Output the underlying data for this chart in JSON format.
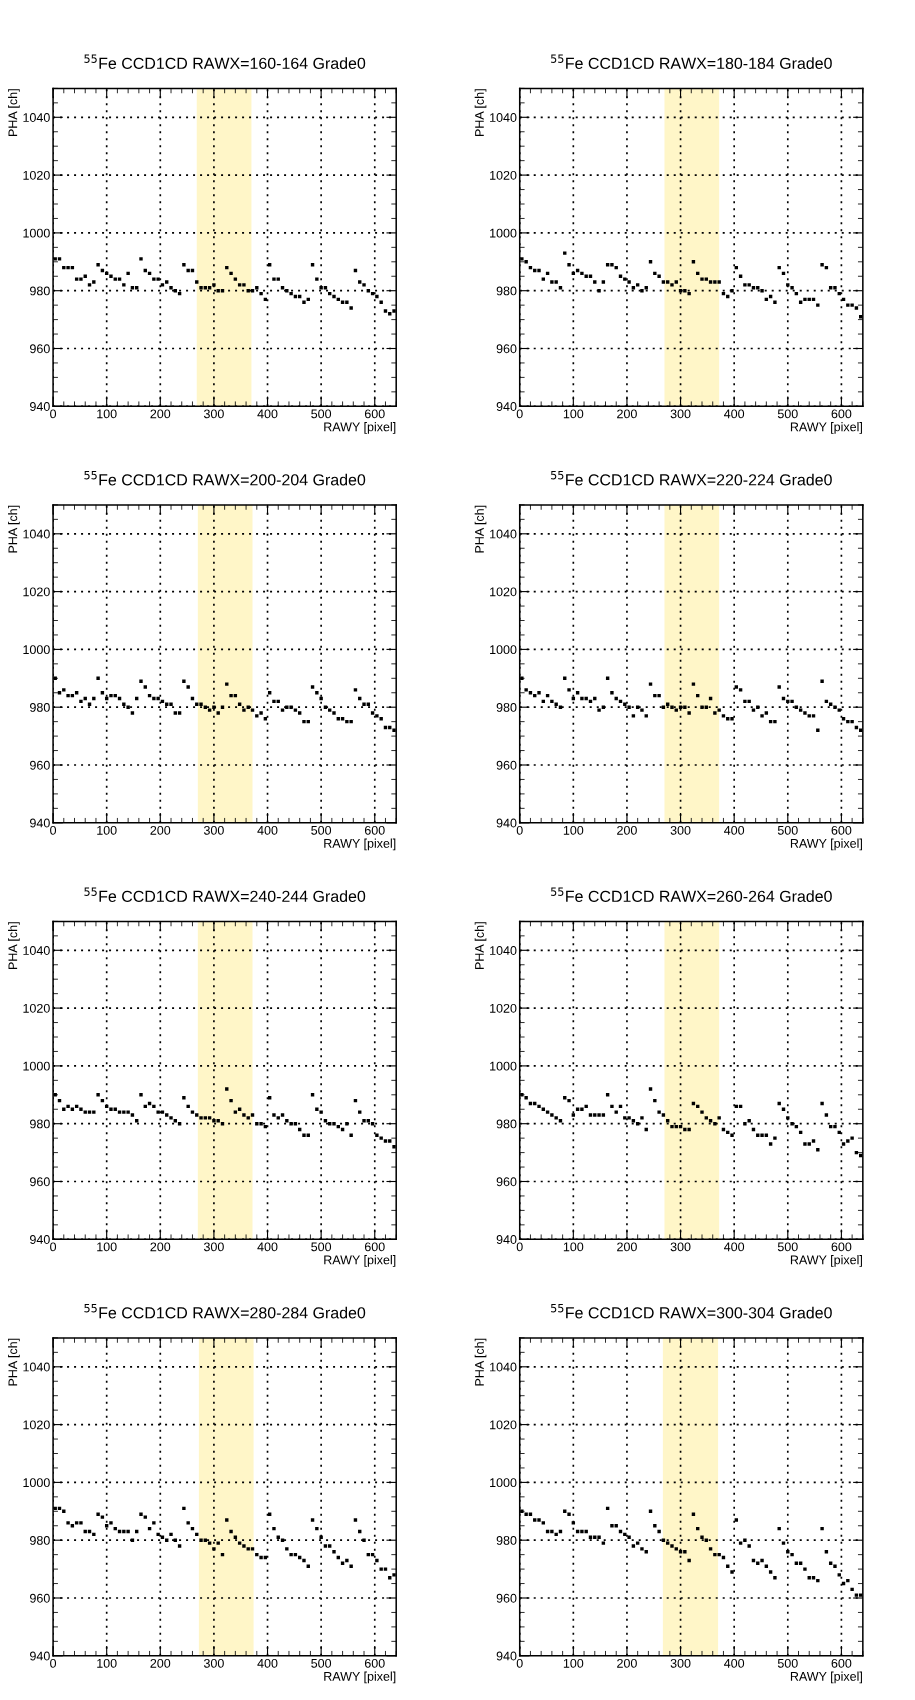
{
  "chart_data": [
    {
      "type": "scatter",
      "title": "$^{55}$Fe CCD1CD RAWX=160-164 Grade0",
      "xlabel": "RAWY [pixel]",
      "ylabel": "PHA [ch]",
      "xlim": [
        0,
        640
      ],
      "ylim": [
        940,
        1050
      ],
      "xticks": [
        0,
        100,
        200,
        300,
        400,
        500,
        600
      ],
      "yticks": [
        940,
        960,
        980,
        1000,
        1020,
        1040
      ],
      "grid": true,
      "marker": "square",
      "color": "#000000",
      "bands": [
        {
          "axis": "x",
          "from": 268,
          "to": 370,
          "color": "#fff6c8"
        }
      ],
      "x": [
        4,
        12,
        20,
        28,
        36,
        44,
        52,
        60,
        68,
        76,
        84,
        92,
        100,
        108,
        116,
        124,
        132,
        140,
        148,
        156,
        164,
        172,
        180,
        188,
        196,
        204,
        212,
        220,
        228,
        236,
        244,
        252,
        260,
        268,
        276,
        284,
        292,
        300,
        308,
        316,
        324,
        332,
        340,
        348,
        356,
        364,
        372,
        380,
        388,
        396,
        404,
        412,
        420,
        428,
        436,
        444,
        452,
        460,
        468,
        476,
        484,
        492,
        500,
        508,
        516,
        524,
        532,
        540,
        548,
        556,
        564,
        572,
        580,
        588,
        596,
        604,
        612,
        620,
        628,
        636
      ],
      "values": [
        991,
        991,
        988,
        988,
        988,
        984,
        984,
        985,
        982,
        983,
        989,
        987,
        986,
        985,
        984,
        984,
        982,
        986,
        981,
        981,
        991,
        987,
        986,
        984,
        984,
        982,
        983,
        981,
        980,
        979,
        989,
        987,
        987,
        983,
        981,
        981,
        981,
        982,
        980,
        980,
        988,
        986,
        984,
        982,
        982,
        980,
        980,
        981,
        979,
        977,
        989,
        984,
        984,
        981,
        980,
        979,
        978,
        978,
        976,
        977,
        989,
        984,
        981,
        981,
        979,
        978,
        977,
        976,
        976,
        974,
        987,
        983,
        982,
        980,
        979,
        978,
        976,
        973,
        972,
        973
      ]
    },
    {
      "type": "scatter",
      "title": "$^{55}$Fe CCD1CD RAWX=180-184 Grade0",
      "xlabel": "RAWY [pixel]",
      "ylabel": "PHA [ch]",
      "xlim": [
        0,
        640
      ],
      "ylim": [
        940,
        1050
      ],
      "xticks": [
        0,
        100,
        200,
        300,
        400,
        500,
        600
      ],
      "yticks": [
        940,
        960,
        980,
        1000,
        1020,
        1040
      ],
      "grid": true,
      "marker": "square",
      "color": "#000000",
      "bands": [
        {
          "axis": "x",
          "from": 270,
          "to": 372,
          "color": "#fff6c8"
        }
      ],
      "x": [
        4,
        12,
        20,
        28,
        36,
        44,
        52,
        60,
        68,
        76,
        84,
        92,
        100,
        108,
        116,
        124,
        132,
        140,
        148,
        156,
        164,
        172,
        180,
        188,
        196,
        204,
        212,
        220,
        228,
        236,
        244,
        252,
        260,
        268,
        276,
        284,
        292,
        300,
        308,
        316,
        324,
        332,
        340,
        348,
        356,
        364,
        372,
        380,
        388,
        396,
        404,
        412,
        420,
        428,
        436,
        444,
        452,
        460,
        468,
        476,
        484,
        492,
        500,
        508,
        516,
        524,
        532,
        540,
        548,
        556,
        564,
        572,
        580,
        588,
        596,
        604,
        612,
        620,
        628,
        636
      ],
      "values": [
        991,
        990,
        988,
        987,
        987,
        984,
        986,
        983,
        983,
        981,
        993,
        989,
        986,
        987,
        986,
        985,
        985,
        983,
        980,
        983,
        989,
        989,
        988,
        985,
        984,
        983,
        981,
        982,
        980,
        981,
        990,
        986,
        985,
        983,
        983,
        982,
        983,
        980,
        980,
        979,
        990,
        986,
        984,
        984,
        983,
        983,
        983,
        979,
        978,
        980,
        988,
        985,
        982,
        982,
        981,
        981,
        980,
        977,
        978,
        976,
        988,
        986,
        982,
        981,
        979,
        976,
        977,
        977,
        977,
        975,
        989,
        988,
        981,
        981,
        979,
        977,
        975,
        975,
        974,
        971
      ]
    },
    {
      "type": "scatter",
      "title": "$^{55}$Fe CCD1CD RAWX=200-204 Grade0",
      "xlabel": "RAWY [pixel]",
      "ylabel": "PHA [ch]",
      "xlim": [
        0,
        640
      ],
      "ylim": [
        940,
        1050
      ],
      "xticks": [
        0,
        100,
        200,
        300,
        400,
        500,
        600
      ],
      "yticks": [
        940,
        960,
        980,
        1000,
        1020,
        1040
      ],
      "grid": true,
      "marker": "square",
      "color": "#000000",
      "bands": [
        {
          "axis": "x",
          "from": 270,
          "to": 372,
          "color": "#fff6c8"
        }
      ],
      "x": [
        4,
        12,
        20,
        28,
        36,
        44,
        52,
        60,
        68,
        76,
        84,
        92,
        100,
        108,
        116,
        124,
        132,
        140,
        148,
        156,
        164,
        172,
        180,
        188,
        196,
        204,
        212,
        220,
        228,
        236,
        244,
        252,
        260,
        268,
        276,
        284,
        292,
        300,
        308,
        316,
        324,
        332,
        340,
        348,
        356,
        364,
        372,
        380,
        388,
        396,
        404,
        412,
        420,
        428,
        436,
        444,
        452,
        460,
        468,
        476,
        484,
        492,
        500,
        508,
        516,
        524,
        532,
        540,
        548,
        556,
        564,
        572,
        580,
        588,
        596,
        604,
        612,
        620,
        628,
        636
      ],
      "values": [
        990,
        985,
        986,
        984,
        984,
        985,
        982,
        983,
        981,
        983,
        990,
        985,
        983,
        984,
        984,
        983,
        981,
        980,
        978,
        983,
        989,
        987,
        984,
        983,
        983,
        982,
        981,
        981,
        978,
        978,
        989,
        987,
        983,
        981,
        981,
        980,
        979,
        980,
        978,
        980,
        988,
        984,
        984,
        981,
        979,
        980,
        979,
        977,
        978,
        976,
        985,
        982,
        982,
        979,
        980,
        980,
        979,
        978,
        975,
        975,
        987,
        985,
        983,
        980,
        979,
        978,
        976,
        976,
        975,
        975,
        986,
        983,
        981,
        981,
        978,
        977,
        976,
        973,
        973,
        972
      ]
    },
    {
      "type": "scatter",
      "title": "$^{55}$Fe CCD1CD RAWX=220-224 Grade0",
      "xlabel": "RAWY [pixel]",
      "ylabel": "PHA [ch]",
      "xlim": [
        0,
        640
      ],
      "ylim": [
        940,
        1050
      ],
      "xticks": [
        0,
        100,
        200,
        300,
        400,
        500,
        600
      ],
      "yticks": [
        940,
        960,
        980,
        1000,
        1020,
        1040
      ],
      "grid": true,
      "marker": "square",
      "color": "#000000",
      "bands": [
        {
          "axis": "x",
          "from": 270,
          "to": 372,
          "color": "#fff6c8"
        }
      ],
      "x": [
        4,
        12,
        20,
        28,
        36,
        44,
        52,
        60,
        68,
        76,
        84,
        92,
        100,
        108,
        116,
        124,
        132,
        140,
        148,
        156,
        164,
        172,
        180,
        188,
        196,
        204,
        212,
        220,
        228,
        236,
        244,
        252,
        260,
        268,
        276,
        284,
        292,
        300,
        308,
        316,
        324,
        332,
        340,
        348,
        356,
        364,
        372,
        380,
        388,
        396,
        404,
        412,
        420,
        428,
        436,
        444,
        452,
        460,
        468,
        476,
        484,
        492,
        500,
        508,
        516,
        524,
        532,
        540,
        548,
        556,
        564,
        572,
        580,
        588,
        596,
        604,
        612,
        620,
        628,
        636
      ],
      "values": [
        990,
        986,
        985,
        984,
        985,
        982,
        984,
        982,
        981,
        980,
        990,
        986,
        983,
        985,
        983,
        983,
        982,
        983,
        979,
        980,
        990,
        985,
        983,
        982,
        981,
        980,
        977,
        980,
        979,
        977,
        988,
        984,
        984,
        980,
        981,
        980,
        979,
        980,
        980,
        978,
        988,
        984,
        980,
        980,
        983,
        978,
        979,
        977,
        976,
        976,
        987,
        986,
        982,
        982,
        979,
        980,
        977,
        978,
        975,
        975,
        987,
        983,
        982,
        982,
        980,
        979,
        978,
        977,
        977,
        972,
        989,
        982,
        981,
        980,
        979,
        976,
        975,
        975,
        973,
        972
      ]
    },
    {
      "type": "scatter",
      "title": "$^{55}$Fe CCD1CD RAWX=240-244 Grade0",
      "xlabel": "RAWY [pixel]",
      "ylabel": "PHA [ch]",
      "xlim": [
        0,
        640
      ],
      "ylim": [
        940,
        1050
      ],
      "xticks": [
        0,
        100,
        200,
        300,
        400,
        500,
        600
      ],
      "yticks": [
        940,
        960,
        980,
        1000,
        1020,
        1040
      ],
      "grid": true,
      "marker": "square",
      "color": "#000000",
      "bands": [
        {
          "axis": "x",
          "from": 270,
          "to": 372,
          "color": "#fff6c8"
        }
      ],
      "x": [
        4,
        12,
        20,
        28,
        36,
        44,
        52,
        60,
        68,
        76,
        84,
        92,
        100,
        108,
        116,
        124,
        132,
        140,
        148,
        156,
        164,
        172,
        180,
        188,
        196,
        204,
        212,
        220,
        228,
        236,
        244,
        252,
        260,
        268,
        276,
        284,
        292,
        300,
        308,
        316,
        324,
        332,
        340,
        348,
        356,
        364,
        372,
        380,
        388,
        396,
        404,
        412,
        420,
        428,
        436,
        444,
        452,
        460,
        468,
        476,
        484,
        492,
        500,
        508,
        516,
        524,
        532,
        540,
        548,
        556,
        564,
        572,
        580,
        588,
        596,
        604,
        612,
        620,
        628,
        636
      ],
      "values": [
        990,
        988,
        985,
        986,
        985,
        986,
        985,
        984,
        984,
        984,
        990,
        988,
        986,
        985,
        985,
        984,
        984,
        984,
        983,
        981,
        990,
        986,
        987,
        986,
        984,
        984,
        983,
        982,
        981,
        980,
        989,
        986,
        984,
        983,
        982,
        982,
        982,
        981,
        981,
        980,
        992,
        988,
        984,
        985,
        983,
        982,
        983,
        980,
        980,
        979,
        989,
        983,
        982,
        983,
        981,
        980,
        980,
        978,
        976,
        976,
        990,
        985,
        984,
        981,
        980,
        980,
        979,
        978,
        980,
        976,
        988,
        984,
        981,
        981,
        980,
        976,
        975,
        974,
        974,
        972
      ]
    },
    {
      "type": "scatter",
      "title": "$^{55}$Fe CCD1CD RAWX=260-264 Grade0",
      "xlabel": "RAWY [pixel]",
      "ylabel": "PHA [ch]",
      "xlim": [
        0,
        640
      ],
      "ylim": [
        940,
        1050
      ],
      "xticks": [
        0,
        100,
        200,
        300,
        400,
        500,
        600
      ],
      "yticks": [
        940,
        960,
        980,
        1000,
        1020,
        1040
      ],
      "grid": true,
      "marker": "square",
      "color": "#000000",
      "bands": [
        {
          "axis": "x",
          "from": 270,
          "to": 372,
          "color": "#fff6c8"
        }
      ],
      "x": [
        4,
        12,
        20,
        28,
        36,
        44,
        52,
        60,
        68,
        76,
        84,
        92,
        100,
        108,
        116,
        124,
        132,
        140,
        148,
        156,
        164,
        172,
        180,
        188,
        196,
        204,
        212,
        220,
        228,
        236,
        244,
        252,
        260,
        268,
        276,
        284,
        292,
        300,
        308,
        316,
        324,
        332,
        340,
        348,
        356,
        364,
        372,
        380,
        388,
        396,
        404,
        412,
        420,
        428,
        436,
        444,
        452,
        460,
        468,
        476,
        484,
        492,
        500,
        508,
        516,
        524,
        532,
        540,
        548,
        556,
        564,
        572,
        580,
        588,
        596,
        604,
        612,
        620,
        628,
        636
      ],
      "values": [
        990,
        989,
        987,
        987,
        986,
        985,
        984,
        983,
        982,
        981,
        989,
        988,
        983,
        985,
        985,
        986,
        983,
        983,
        983,
        983,
        990,
        986,
        984,
        986,
        982,
        982,
        981,
        980,
        982,
        978,
        992,
        988,
        984,
        983,
        981,
        979,
        979,
        979,
        978,
        978,
        987,
        986,
        984,
        982,
        981,
        980,
        982,
        978,
        977,
        976,
        986,
        986,
        980,
        981,
        978,
        976,
        976,
        976,
        973,
        975,
        987,
        985,
        982,
        980,
        979,
        977,
        973,
        973,
        974,
        971,
        987,
        983,
        979,
        979,
        977,
        973,
        974,
        975,
        970,
        969
      ]
    },
    {
      "type": "scatter",
      "title": "$^{55}$Fe CCD1CD RAWX=280-284 Grade0",
      "xlabel": "RAWY [pixel]",
      "ylabel": "PHA [ch]",
      "xlim": [
        0,
        640
      ],
      "ylim": [
        940,
        1050
      ],
      "xticks": [
        0,
        100,
        200,
        300,
        400,
        500,
        600
      ],
      "yticks": [
        940,
        960,
        980,
        1000,
        1020,
        1040
      ],
      "grid": true,
      "marker": "square",
      "color": "#000000",
      "bands": [
        {
          "axis": "x",
          "from": 272,
          "to": 374,
          "color": "#fff6c8"
        }
      ],
      "x": [
        4,
        12,
        20,
        28,
        36,
        44,
        52,
        60,
        68,
        76,
        84,
        92,
        100,
        108,
        116,
        124,
        132,
        140,
        148,
        156,
        164,
        172,
        180,
        188,
        196,
        204,
        212,
        220,
        228,
        236,
        244,
        252,
        260,
        268,
        276,
        284,
        292,
        300,
        308,
        316,
        324,
        332,
        340,
        348,
        356,
        364,
        372,
        380,
        388,
        396,
        404,
        412,
        420,
        428,
        436,
        444,
        452,
        460,
        468,
        476,
        484,
        492,
        500,
        508,
        516,
        524,
        532,
        540,
        548,
        556,
        564,
        572,
        580,
        588,
        596,
        604,
        612,
        620,
        628,
        636
      ],
      "values": [
        991,
        991,
        990,
        986,
        985,
        986,
        986,
        983,
        983,
        982,
        989,
        988,
        985,
        986,
        984,
        983,
        983,
        983,
        980,
        983,
        989,
        988,
        984,
        986,
        982,
        981,
        980,
        982,
        980,
        978,
        991,
        986,
        984,
        982,
        980,
        980,
        979,
        977,
        979,
        975,
        987,
        983,
        981,
        979,
        978,
        977,
        977,
        975,
        974,
        974,
        989,
        984,
        981,
        980,
        977,
        975,
        975,
        974,
        973,
        971,
        987,
        984,
        981,
        978,
        978,
        976,
        974,
        972,
        973,
        971,
        987,
        983,
        980,
        975,
        975,
        973,
        970,
        970,
        967,
        968
      ]
    },
    {
      "type": "scatter",
      "title": "$^{55}$Fe CCD1CD RAWX=300-304 Grade0",
      "xlabel": "RAWY [pixel]",
      "ylabel": "PHA [ch]",
      "xlim": [
        0,
        640
      ],
      "ylim": [
        940,
        1050
      ],
      "xticks": [
        0,
        100,
        200,
        300,
        400,
        500,
        600
      ],
      "yticks": [
        940,
        960,
        980,
        1000,
        1020,
        1040
      ],
      "grid": true,
      "marker": "square",
      "color": "#000000",
      "bands": [
        {
          "axis": "x",
          "from": 267,
          "to": 370,
          "color": "#fff6c8"
        }
      ],
      "x": [
        4,
        12,
        20,
        28,
        36,
        44,
        52,
        60,
        68,
        76,
        84,
        92,
        100,
        108,
        116,
        124,
        132,
        140,
        148,
        156,
        164,
        172,
        180,
        188,
        196,
        204,
        212,
        220,
        228,
        236,
        244,
        252,
        260,
        268,
        276,
        284,
        292,
        300,
        308,
        316,
        324,
        332,
        340,
        348,
        356,
        364,
        372,
        380,
        388,
        396,
        404,
        412,
        420,
        428,
        436,
        444,
        452,
        460,
        468,
        476,
        484,
        492,
        500,
        508,
        516,
        524,
        532,
        540,
        548,
        556,
        564,
        572,
        580,
        588,
        596,
        604,
        612,
        620,
        628,
        636
      ],
      "values": [
        990,
        989,
        989,
        987,
        987,
        986,
        983,
        983,
        982,
        983,
        990,
        989,
        986,
        983,
        983,
        983,
        981,
        981,
        981,
        979,
        991,
        985,
        985,
        983,
        982,
        981,
        978,
        979,
        977,
        976,
        990,
        985,
        983,
        980,
        979,
        978,
        977,
        976,
        976,
        973,
        989,
        984,
        981,
        980,
        977,
        975,
        975,
        974,
        971,
        969,
        987,
        979,
        980,
        978,
        973,
        972,
        973,
        971,
        969,
        967,
        984,
        979,
        976,
        975,
        972,
        972,
        970,
        967,
        967,
        966,
        984,
        976,
        972,
        971,
        968,
        965,
        966,
        963,
        961,
        961
      ]
    }
  ]
}
